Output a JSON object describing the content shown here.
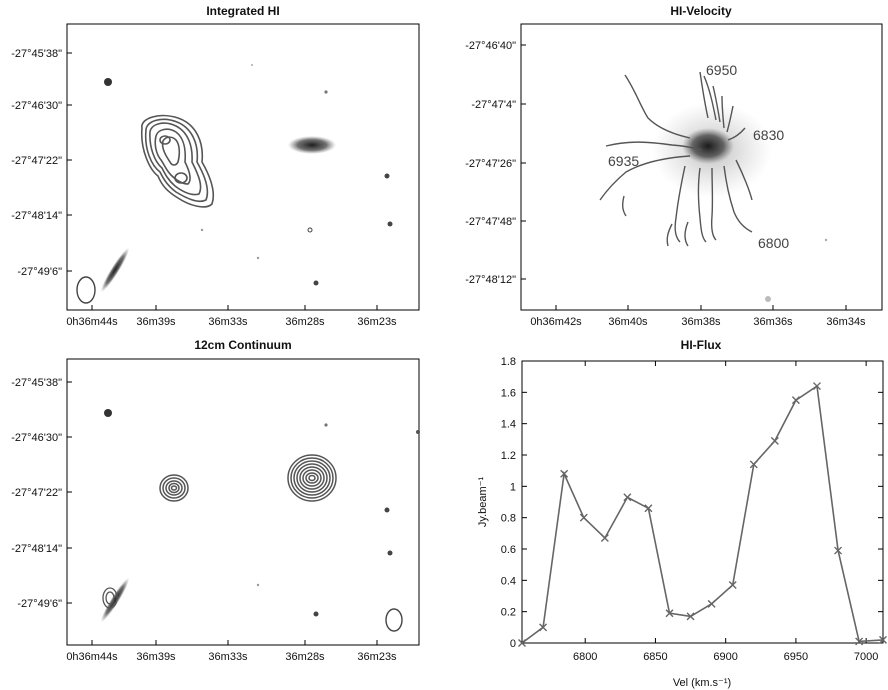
{
  "panels": {
    "integrated_hi": {
      "title": "Integrated HI",
      "y_ticks": [
        "-27°45'38\"",
        "-27°46'30\"",
        "-27°47'22\"",
        "-27°48'14\"",
        "-27°49'6\""
      ],
      "x_ticks": [
        "0h36m44s",
        "36m39s",
        "36m33s",
        "36m28s",
        "36m23s"
      ]
    },
    "hi_velocity": {
      "title": "HI-Velocity",
      "y_ticks": [
        "-27°46'40\"",
        "-27°47'4\"",
        "-27°47'26\"",
        "-27°47'48\"",
        "-27°48'12\""
      ],
      "x_ticks": [
        "0h36m42s",
        "36m40s",
        "36m38s",
        "36m36s",
        "36m34s"
      ],
      "contour_labels": [
        "6950",
        "6830",
        "6935",
        "6800"
      ]
    },
    "continuum": {
      "title": "12cm Continuum",
      "y_ticks": [
        "-27°45'38\"",
        "-27°46'30\"",
        "-27°47'22\"",
        "-27°48'14\"",
        "-27°49'6\""
      ],
      "x_ticks": [
        "0h36m44s",
        "36m39s",
        "36m33s",
        "36m28s",
        "36m23s"
      ]
    }
  },
  "chart_data": {
    "type": "line",
    "title": "HI-Flux",
    "xlabel": "Vel (km.s⁻¹)",
    "ylabel": "Jy.beam⁻¹",
    "xlim": [
      6755,
      7012
    ],
    "ylim": [
      0,
      1.8
    ],
    "x_ticks": [
      "6800",
      "6850",
      "6900",
      "6950",
      "7000"
    ],
    "y_ticks": [
      "0",
      "0.2",
      "0.4",
      "0.6",
      "0.8",
      "1",
      "1.2",
      "1.4",
      "1.6",
      "1.8"
    ],
    "color": "#666666",
    "marker": "x",
    "series": [
      {
        "x": [
          6755,
          6770,
          6785,
          6799,
          6814,
          6830,
          6845,
          6860,
          6875,
          6890,
          6905,
          6920,
          6935,
          6950,
          6965,
          6980,
          6995,
          7012
        ],
        "y": [
          0.0,
          0.1,
          1.08,
          0.8,
          0.67,
          0.93,
          0.86,
          0.19,
          0.17,
          0.25,
          0.37,
          1.14,
          1.29,
          1.55,
          1.64,
          0.59,
          0.01,
          0.02
        ]
      }
    ]
  }
}
